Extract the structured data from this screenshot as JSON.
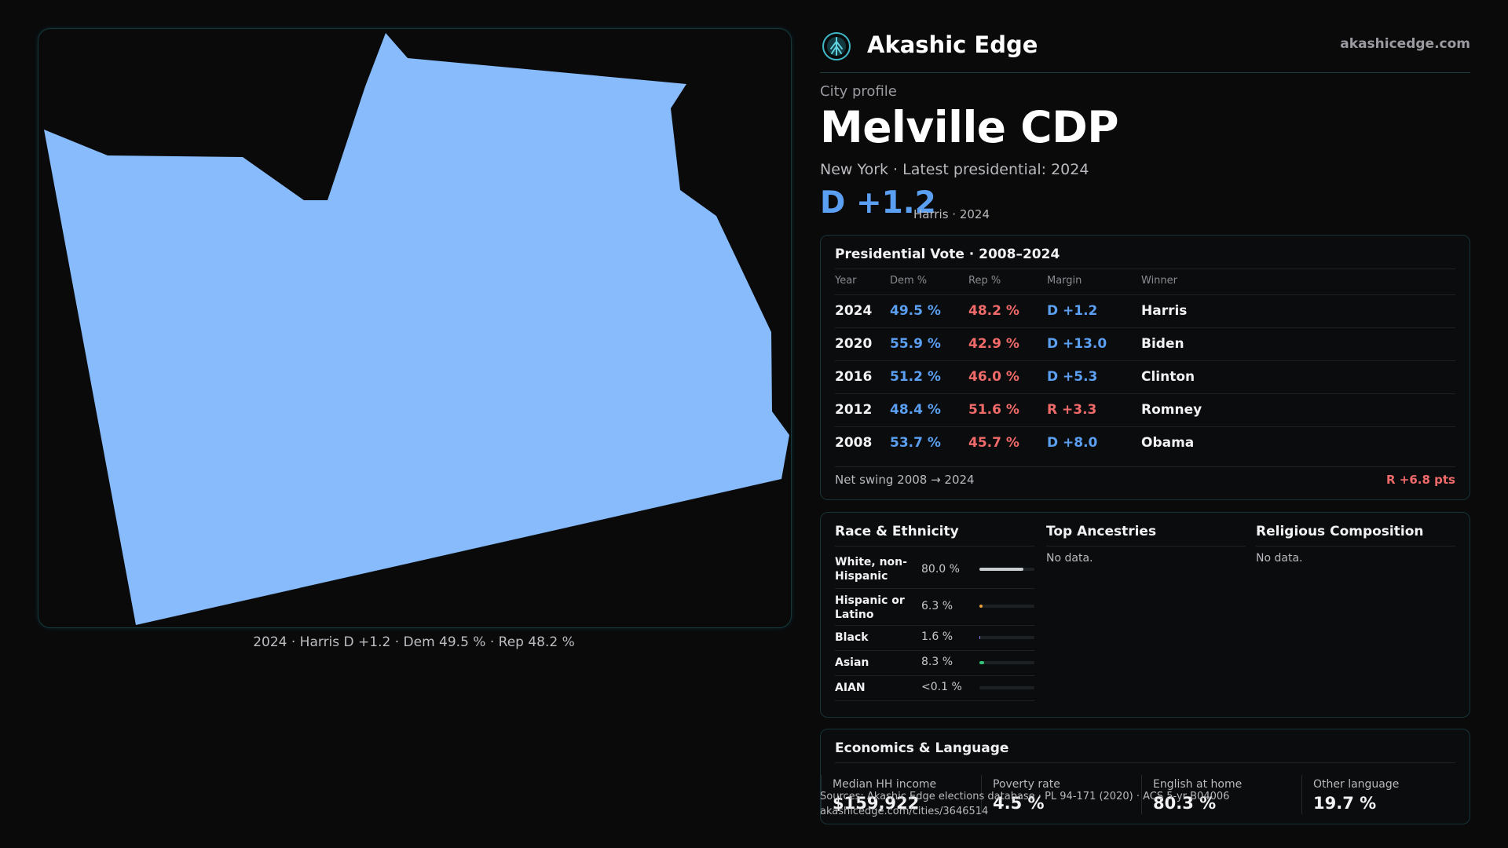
{
  "map": {
    "fill_color": "#87bbfb",
    "caption": "2024 · Harris D +1.2 · Dem 49.5 % · Rep 48.2 %"
  },
  "brand": {
    "logo_icon": "compass-tree-logo",
    "name": "Akashic Edge",
    "url": "akashicedge.com"
  },
  "profile": {
    "eyebrow": "City profile",
    "title": "Melville CDP",
    "subtitle": "New York  · Latest presidential: 2024",
    "margin": "D +1.2",
    "margin_note": "Harris · 2024"
  },
  "presidential": {
    "title": "Presidential Vote · 2008–2024",
    "headers": {
      "year": "Year",
      "dem": "Dem %",
      "rep": "Rep %",
      "margin": "Margin",
      "winner": "Winner"
    },
    "rows": [
      {
        "year": "2024",
        "dem": "49.5 %",
        "rep": "48.2 %",
        "margin": "D +1.2",
        "winner": "Harris",
        "party": "D"
      },
      {
        "year": "2020",
        "dem": "55.9 %",
        "rep": "42.9 %",
        "margin": "D +13.0",
        "winner": "Biden",
        "party": "D"
      },
      {
        "year": "2016",
        "dem": "51.2 %",
        "rep": "46.0 %",
        "margin": "D +5.3",
        "winner": "Clinton",
        "party": "D"
      },
      {
        "year": "2012",
        "dem": "48.4 %",
        "rep": "51.6 %",
        "margin": "R +3.3",
        "winner": "Romney",
        "party": "R"
      },
      {
        "year": "2008",
        "dem": "53.7 %",
        "rep": "45.7 %",
        "margin": "D +8.0",
        "winner": "Obama",
        "party": "D"
      }
    ],
    "swing_label": "Net swing 2008 → 2024",
    "swing_value": "R +6.8 pts"
  },
  "race": {
    "title": "Race & Ethnicity",
    "rows": [
      {
        "name": "White, non-Hispanic",
        "pct": "80.0 %",
        "share": 0.8,
        "color": "#c9cdd2"
      },
      {
        "name": "Hispanic or Latino",
        "pct": "6.3 %",
        "share": 0.063,
        "color": "#e8a13a"
      },
      {
        "name": "Black",
        "pct": "1.6 %",
        "share": 0.016,
        "color": "#8a7cf0"
      },
      {
        "name": "Asian",
        "pct": "8.3 %",
        "share": 0.083,
        "color": "#35c27a"
      },
      {
        "name": "AIAN",
        "pct": "<0.1 %",
        "share": 0.0,
        "color": "#c9cdd2"
      }
    ]
  },
  "ancestries": {
    "title": "Top Ancestries",
    "empty": "No data."
  },
  "religion": {
    "title": "Religious Composition",
    "empty": "No data."
  },
  "economics": {
    "title": "Economics & Language",
    "cells": [
      {
        "label": "Median HH income",
        "value": "$159,922"
      },
      {
        "label": "Poverty rate",
        "value": "4.5 %"
      },
      {
        "label": "English at home",
        "value": "80.3 %"
      },
      {
        "label": "Other language",
        "value": "19.7 %"
      }
    ]
  },
  "source": {
    "line1": "Sources: Akashic Edge elections database · PL 94-171 (2020) · ACS 5-yr B04006",
    "line2": "akashicedge.com/cities/3646514"
  }
}
